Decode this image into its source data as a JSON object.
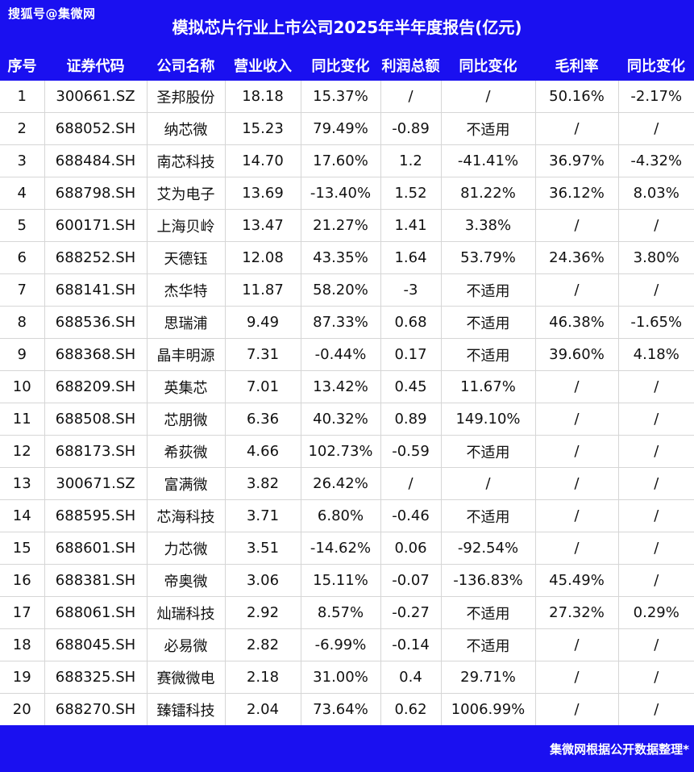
{
  "watermark": "搜狐号@集微网",
  "title": "模拟芯片行业上市公司2025年半年度报告(亿元)",
  "columns": [
    "序号",
    "证券代码",
    "公司名称",
    "营业收入",
    "同比变化",
    "利润总额",
    "同比变化",
    "毛利率",
    "同比变化"
  ],
  "rows": [
    [
      "1",
      "300661.SZ",
      "圣邦股份",
      "18.18",
      "15.37%",
      "/",
      "/",
      "50.16%",
      "-2.17%"
    ],
    [
      "2",
      "688052.SH",
      "纳芯微",
      "15.23",
      "79.49%",
      "-0.89",
      "不适用",
      "/",
      "/"
    ],
    [
      "3",
      "688484.SH",
      "南芯科技",
      "14.70",
      "17.60%",
      "1.2",
      "-41.41%",
      "36.97%",
      "-4.32%"
    ],
    [
      "4",
      "688798.SH",
      "艾为电子",
      "13.69",
      "-13.40%",
      "1.52",
      "81.22%",
      "36.12%",
      "8.03%"
    ],
    [
      "5",
      "600171.SH",
      "上海贝岭",
      "13.47",
      "21.27%",
      "1.41",
      "3.38%",
      "/",
      "/"
    ],
    [
      "6",
      "688252.SH",
      "天德钰",
      "12.08",
      "43.35%",
      "1.64",
      "53.79%",
      "24.36%",
      "3.80%"
    ],
    [
      "7",
      "688141.SH",
      "杰华特",
      "11.87",
      "58.20%",
      "-3",
      "不适用",
      "/",
      "/"
    ],
    [
      "8",
      "688536.SH",
      "思瑞浦",
      "9.49",
      "87.33%",
      "0.68",
      "不适用",
      "46.38%",
      "-1.65%"
    ],
    [
      "9",
      "688368.SH",
      "晶丰明源",
      "7.31",
      "-0.44%",
      "0.17",
      "不适用",
      "39.60%",
      "4.18%"
    ],
    [
      "10",
      "688209.SH",
      "英集芯",
      "7.01",
      "13.42%",
      "0.45",
      "11.67%",
      "/",
      "/"
    ],
    [
      "11",
      "688508.SH",
      "芯朋微",
      "6.36",
      "40.32%",
      "0.89",
      "149.10%",
      "/",
      "/"
    ],
    [
      "12",
      "688173.SH",
      "希荻微",
      "4.66",
      "102.73%",
      "-0.59",
      "不适用",
      "/",
      "/"
    ],
    [
      "13",
      "300671.SZ",
      "富满微",
      "3.82",
      "26.42%",
      "/",
      "/",
      "/",
      "/"
    ],
    [
      "14",
      "688595.SH",
      "芯海科技",
      "3.71",
      "6.80%",
      "-0.46",
      "不适用",
      "/",
      "/"
    ],
    [
      "15",
      "688601.SH",
      "力芯微",
      "3.51",
      "-14.62%",
      "0.06",
      "-92.54%",
      "/",
      "/"
    ],
    [
      "16",
      "688381.SH",
      "帝奥微",
      "3.06",
      "15.11%",
      "-0.07",
      "-136.83%",
      "45.49%",
      "/"
    ],
    [
      "17",
      "688061.SH",
      "灿瑞科技",
      "2.92",
      "8.57%",
      "-0.27",
      "不适用",
      "27.32%",
      "0.29%"
    ],
    [
      "18",
      "688045.SH",
      "必易微",
      "2.82",
      "-6.99%",
      "-0.14",
      "不适用",
      "/",
      "/"
    ],
    [
      "19",
      "688325.SH",
      "赛微微电",
      "2.18",
      "31.00%",
      "0.4",
      "29.71%",
      "/",
      "/"
    ],
    [
      "20",
      "688270.SH",
      "臻镭科技",
      "2.04",
      "73.64%",
      "0.62",
      "1006.99%",
      "/",
      "/"
    ]
  ],
  "footer_note": "集微网根据公开数据整理*",
  "colors": {
    "header_bg": "#1a10f0",
    "header_text": "#ffffff",
    "grid_line": "#d6d6d6",
    "cell_text": "#111111"
  }
}
